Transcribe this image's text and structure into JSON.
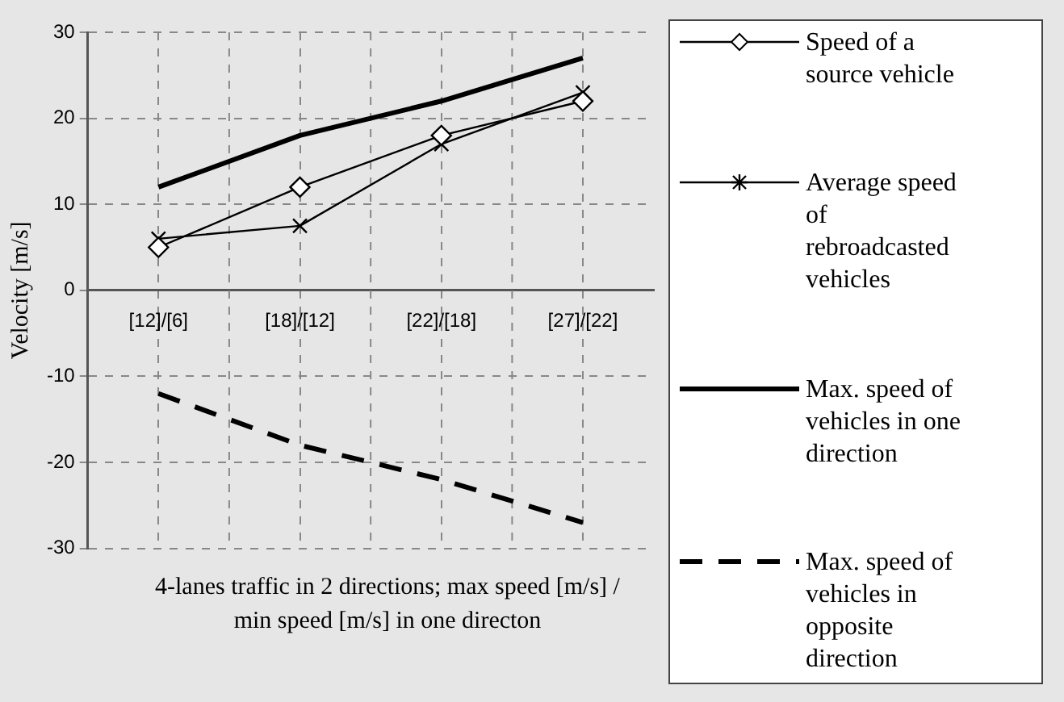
{
  "chart_data": {
    "type": "line",
    "xlabel": "4-lanes traffic in 2 directions; max speed [m/s] / min speed [m/s] in one directon",
    "ylabel": "Velocity [m/s]",
    "categories": [
      "[12]/[6]",
      "[18]/[12]",
      "[22]/[18]",
      "[27]/[22]"
    ],
    "series": [
      {
        "name": "Speed of a source vehicle",
        "color": "#000000",
        "values": [
          5,
          12,
          18,
          22
        ],
        "marker": "diamond",
        "line_style": "solid"
      },
      {
        "name": "Average speed of rebroadcasted vehicles",
        "color": "#000000",
        "values": [
          6,
          7.5,
          17,
          23
        ],
        "marker": "cross",
        "line_style": "solid"
      },
      {
        "name": "Max. speed of vehicles in one direction",
        "color": "#000000",
        "values": [
          12,
          18,
          22,
          27
        ],
        "marker": "none",
        "line_style": "solid"
      },
      {
        "name": "Max. speed of vehicles in opposite direction",
        "color": "#000000",
        "values": [
          -12,
          -18,
          -22,
          -27
        ],
        "marker": "none",
        "line_style": "dashed"
      }
    ],
    "ylim": [
      -30,
      30
    ],
    "yticks": [
      -30,
      -20,
      -10,
      0,
      10,
      20,
      30
    ],
    "grid": true,
    "legend": "right"
  }
}
